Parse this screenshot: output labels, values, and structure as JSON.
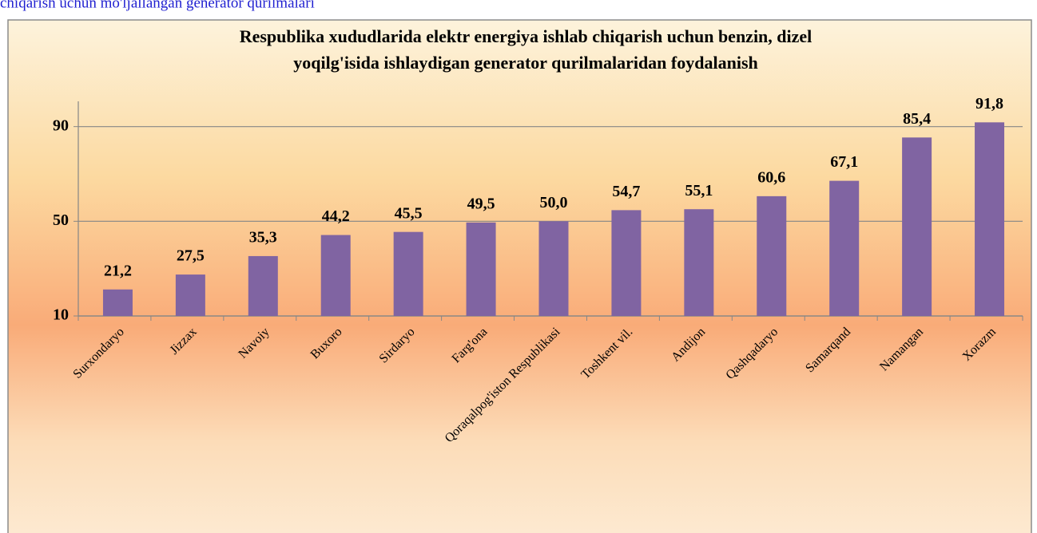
{
  "caption": "chiqarish uchun mo'ljallangan generator qurilmalari",
  "chart_data": {
    "type": "bar",
    "title": "Respublika xududlarida elektr energiya ishlab chiqarish uchun benzin, dizel",
    "subtitle": "yoqilg'isida ishlaydigan generator qurilmalaridan foydalanish",
    "categories": [
      "Surxondaryo",
      "Jizzax",
      "Navoiy",
      "Buxoro",
      "Sirdaryo",
      "Farg'ona",
      "Qoraqalpog'iston Respublikasi",
      "Toshkent vil.",
      "Andijon",
      "Qashqadaryo",
      "Samarqand",
      "Namangan",
      "Xorazm"
    ],
    "values": [
      21.2,
      27.5,
      35.3,
      44.2,
      45.5,
      49.5,
      50.0,
      54.7,
      55.1,
      60.6,
      67.1,
      85.4,
      91.8
    ],
    "value_labels": [
      "21,2",
      "27,5",
      "35,3",
      "44,2",
      "45,5",
      "49,5",
      "50,0",
      "54,7",
      "55,1",
      "60,6",
      "67,1",
      "85,4",
      "91,8"
    ],
    "color": "#8064a2",
    "ylim": [
      10,
      100
    ],
    "yticks": [
      10,
      50,
      90
    ],
    "grid": true
  }
}
